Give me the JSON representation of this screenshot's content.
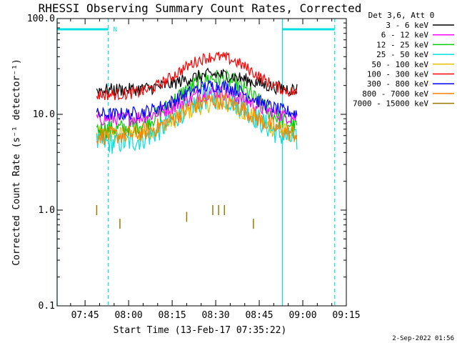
{
  "chart_data": {
    "type": "line",
    "title": "RHESSI Observing Summary Count Rates, Corrected",
    "xlabel": "Start Time (13-Feb-17 07:35:22)",
    "ylabel": "Corrected Count Rate (s⁻¹ detector⁻¹)",
    "yscale": "log",
    "ylim": [
      0.1,
      100.0
    ],
    "yticks": [
      "100.0",
      "10.0",
      "1.0",
      "0.1"
    ],
    "xlim": [
      "07:35:22",
      "09:15:00"
    ],
    "xticks": [
      "07:45",
      "08:00",
      "08:15",
      "08:30",
      "08:45",
      "09:00",
      "09:15"
    ],
    "legend_header": "Det 3,6, Att 0",
    "legend_placement": "right, outside plot",
    "timestamp": "2-Sep-2022 01:56",
    "night_marker": "N",
    "data_start": "07:49",
    "data_end": "08:58",
    "markers": {
      "solid_cyan_lines": [
        "07:35:22",
        "08:53:00"
      ],
      "dashed_cyan_lines": [
        "07:53:00",
        "09:11:00"
      ],
      "night_bars": [
        [
          "07:35:22",
          "07:53:00"
        ],
        [
          "08:53:00",
          "09:11:00"
        ]
      ]
    },
    "series": [
      {
        "name": "3 - 6 keV",
        "color": "#000000",
        "baseline": 18,
        "peak": 26,
        "noise": 0.16
      },
      {
        "name": "6 - 12 keV",
        "color": "#ff00ff",
        "baseline": 9,
        "peak": 17,
        "noise": 0.18
      },
      {
        "name": "12 - 25 keV",
        "color": "#00cc00",
        "baseline": 7,
        "peak": 24,
        "noise": 0.22
      },
      {
        "name": "25 - 50 keV",
        "color": "#00e0e0",
        "baseline": 5,
        "peak": 15,
        "noise": 0.28
      },
      {
        "name": "50 - 100 keV",
        "color": "#e8c000",
        "baseline": 6,
        "peak": 13,
        "noise": 0.22
      },
      {
        "name": "100 - 300 keV",
        "color": "#ff0000",
        "baseline": 16,
        "peak": 40,
        "noise": 0.14
      },
      {
        "name": "300 - 800 keV",
        "color": "#0000ff",
        "baseline": 10,
        "peak": 20,
        "noise": 0.16
      },
      {
        "name": "800 - 7000 keV",
        "color": "#ff8000",
        "baseline": 6,
        "peak": 14,
        "noise": 0.22
      },
      {
        "name": "7000 - 15000 keV",
        "color": "#9a7a00",
        "baseline": 1.0,
        "peak": 1.0,
        "noise": 0.0
      }
    ],
    "sparse_points": {
      "series": "7000 - 15000 keV",
      "times": [
        "07:49",
        "07:57",
        "08:20",
        "08:29",
        "08:31",
        "08:33",
        "08:43"
      ],
      "values": [
        1.0,
        0.72,
        0.85,
        1.0,
        1.0,
        1.0,
        0.72
      ]
    }
  }
}
